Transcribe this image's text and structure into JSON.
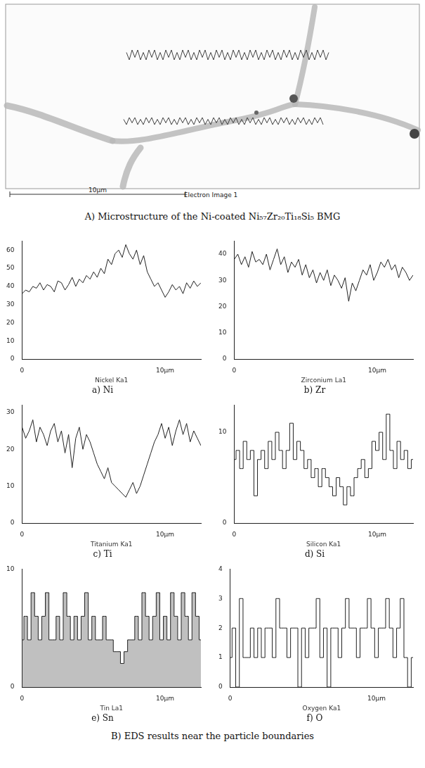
{
  "figure": {
    "panel_a": {
      "scale_bar": "10μm",
      "image_label": "Electron Image 1",
      "caption": "A) Microstructure of the  Ni-coated Ni₅₇Zr₂₀Ti₁₈Si₅ BMG"
    },
    "panel_b_caption": "B) EDS results  near the particle boundaries"
  },
  "chart_data": [
    {
      "type": "line",
      "title": "a) Ni",
      "x_label": "Nickel Ka1",
      "color": "#222222",
      "line_style": "solid",
      "grid": false,
      "x": [
        0,
        0.25,
        0.5,
        0.75,
        1,
        1.25,
        1.5,
        1.75,
        2,
        2.25,
        2.5,
        2.75,
        3,
        3.25,
        3.5,
        3.75,
        4,
        4.25,
        4.5,
        4.75,
        5,
        5.25,
        5.5,
        5.75,
        6,
        6.25,
        6.5,
        6.75,
        7,
        7.25,
        7.5,
        7.75,
        8,
        8.25,
        8.5,
        8.75,
        9,
        9.25,
        9.5,
        9.75,
        10,
        10.25,
        10.5,
        10.75,
        11,
        11.25,
        11.5,
        11.75,
        12,
        12.25,
        12.5
      ],
      "values": [
        36,
        38,
        37,
        40,
        39,
        42,
        38,
        41,
        40,
        37,
        43,
        42,
        38,
        41,
        45,
        40,
        44,
        42,
        46,
        44,
        48,
        45,
        50,
        47,
        55,
        52,
        58,
        60,
        56,
        63,
        58,
        55,
        60,
        52,
        57,
        48,
        44,
        40,
        42,
        38,
        34,
        37,
        41,
        38,
        40,
        36,
        42,
        39,
        43,
        40,
        42
      ],
      "xlim": [
        0,
        12.5
      ],
      "xticks": [
        0,
        {
          "value": 10,
          "label": "10μm"
        }
      ],
      "ylim": [
        0,
        65
      ],
      "yticks": [
        0,
        10,
        20,
        30,
        40,
        50,
        60
      ]
    },
    {
      "type": "line",
      "title": "b) Zr",
      "x_label": "Zirconium La1",
      "color": "#222222",
      "line_style": "solid",
      "grid": false,
      "x": [
        0,
        0.25,
        0.5,
        0.75,
        1,
        1.25,
        1.5,
        1.75,
        2,
        2.25,
        2.5,
        2.75,
        3,
        3.25,
        3.5,
        3.75,
        4,
        4.25,
        4.5,
        4.75,
        5,
        5.25,
        5.5,
        5.75,
        6,
        6.25,
        6.5,
        6.75,
        7,
        7.25,
        7.5,
        7.75,
        8,
        8.25,
        8.5,
        8.75,
        9,
        9.25,
        9.5,
        9.75,
        10,
        10.25,
        10.5,
        10.75,
        11,
        11.25,
        11.5,
        11.75,
        12,
        12.25,
        12.5
      ],
      "values": [
        38,
        40,
        36,
        39,
        35,
        41,
        37,
        38,
        36,
        40,
        34,
        38,
        42,
        36,
        39,
        33,
        37,
        35,
        38,
        32,
        36,
        31,
        34,
        29,
        33,
        30,
        34,
        28,
        32,
        30,
        27,
        31,
        22,
        29,
        26,
        30,
        34,
        32,
        36,
        30,
        33,
        37,
        35,
        38,
        34,
        36,
        31,
        35,
        33,
        30,
        32
      ],
      "xlim": [
        0,
        12.5
      ],
      "xticks": [
        0,
        {
          "value": 10,
          "label": "10μm"
        }
      ],
      "ylim": [
        0,
        45
      ],
      "yticks": [
        0,
        10,
        20,
        30,
        40
      ]
    },
    {
      "type": "line",
      "title": "c) Ti",
      "x_label": "Titanium Ka1",
      "color": "#222222",
      "line_style": "solid",
      "grid": false,
      "x": [
        0,
        0.25,
        0.5,
        0.75,
        1,
        1.25,
        1.5,
        1.75,
        2,
        2.25,
        2.5,
        2.75,
        3,
        3.25,
        3.5,
        3.75,
        4,
        4.25,
        4.5,
        4.75,
        5,
        5.25,
        5.5,
        5.75,
        6,
        6.25,
        6.5,
        6.75,
        7,
        7.25,
        7.5,
        7.75,
        8,
        8.25,
        8.5,
        8.75,
        9,
        9.25,
        9.5,
        9.75,
        10,
        10.25,
        10.5,
        10.75,
        11,
        11.25,
        11.5,
        11.75,
        12,
        12.25,
        12.5
      ],
      "values": [
        26,
        23,
        25,
        28,
        22,
        26,
        24,
        21,
        25,
        27,
        22,
        25,
        19,
        24,
        15,
        23,
        26,
        20,
        24,
        22,
        19,
        16,
        14,
        12,
        15,
        11,
        10,
        9,
        8,
        7,
        9,
        11,
        8,
        10,
        13,
        16,
        19,
        22,
        24,
        27,
        23,
        26,
        21,
        25,
        28,
        24,
        27,
        22,
        25,
        23,
        21
      ],
      "xlim": [
        0,
        12.5
      ],
      "xticks": [
        0,
        {
          "value": 10,
          "label": "10μm"
        }
      ],
      "ylim": [
        0,
        32
      ],
      "yticks": [
        0,
        10,
        20,
        30
      ]
    },
    {
      "type": "line",
      "title": "d) Si",
      "x_label": "Silicon Ka1",
      "color": "#222222",
      "line_style": "step",
      "grid": false,
      "x": [
        0,
        0.25,
        0.5,
        0.75,
        1,
        1.25,
        1.5,
        1.75,
        2,
        2.25,
        2.5,
        2.75,
        3,
        3.25,
        3.5,
        3.75,
        4,
        4.25,
        4.5,
        4.75,
        5,
        5.25,
        5.5,
        5.75,
        6,
        6.25,
        6.5,
        6.75,
        7,
        7.25,
        7.5,
        7.75,
        8,
        8.25,
        8.5,
        8.75,
        9,
        9.25,
        9.5,
        9.75,
        10,
        10.25,
        10.5,
        10.75,
        11,
        11.25,
        11.5,
        11.75,
        12,
        12.25,
        12.5
      ],
      "values": [
        7,
        8,
        6,
        9,
        7,
        8,
        3,
        7,
        8,
        6,
        9,
        7,
        10,
        8,
        6,
        8,
        11,
        7,
        9,
        8,
        6,
        7,
        5,
        6,
        4,
        6,
        5,
        4,
        3,
        5,
        4,
        2,
        4,
        3,
        5,
        6,
        7,
        5,
        6,
        9,
        8,
        10,
        7,
        12,
        8,
        6,
        9,
        7,
        8,
        6,
        7
      ],
      "xlim": [
        0,
        12.5
      ],
      "xticks": [
        0,
        {
          "value": 10,
          "label": "10μm"
        }
      ],
      "ylim": [
        0,
        13
      ],
      "yticks": [
        0,
        10
      ]
    },
    {
      "type": "area",
      "title": "e) Sn",
      "x_label": "Tin La1",
      "color": "#222222",
      "line_style": "step",
      "grid": false,
      "x": [
        0,
        0.25,
        0.5,
        0.75,
        1,
        1.25,
        1.5,
        1.75,
        2,
        2.25,
        2.5,
        2.75,
        3,
        3.25,
        3.5,
        3.75,
        4,
        4.25,
        4.5,
        4.75,
        5,
        5.25,
        5.5,
        5.75,
        6,
        6.25,
        6.5,
        6.75,
        7,
        7.25,
        7.5,
        7.75,
        8,
        8.25,
        8.5,
        8.75,
        9,
        9.25,
        9.5,
        9.75,
        10,
        10.25,
        10.5,
        10.75,
        11,
        11.25,
        11.5,
        11.75,
        12,
        12.25,
        12.5
      ],
      "values": [
        4,
        6,
        4,
        8,
        6,
        4,
        6,
        8,
        4,
        4,
        6,
        4,
        8,
        6,
        4,
        6,
        4,
        6,
        8,
        4,
        6,
        4,
        4,
        6,
        4,
        4,
        3,
        3,
        2,
        3,
        4,
        4,
        6,
        4,
        8,
        6,
        4,
        6,
        8,
        4,
        6,
        4,
        8,
        6,
        4,
        8,
        6,
        4,
        8,
        6,
        4
      ],
      "xlim": [
        0,
        12.5
      ],
      "xticks": [
        0,
        {
          "value": 10,
          "label": "10μm"
        }
      ],
      "ylim": [
        0,
        10
      ],
      "yticks": [
        0,
        10
      ]
    },
    {
      "type": "line",
      "title": "f) O",
      "x_label": "Oxygen Ka1",
      "color": "#222222",
      "line_style": "step",
      "grid": false,
      "x": [
        0,
        0.25,
        0.5,
        0.75,
        1,
        1.25,
        1.5,
        1.75,
        2,
        2.25,
        2.5,
        2.75,
        3,
        3.25,
        3.5,
        3.75,
        4,
        4.25,
        4.5,
        4.75,
        5,
        5.25,
        5.5,
        5.75,
        6,
        6.25,
        6.5,
        6.75,
        7,
        7.25,
        7.5,
        7.75,
        8,
        8.25,
        8.5,
        8.75,
        9,
        9.25,
        9.5,
        9.75,
        10,
        10.25,
        10.5,
        10.75,
        11,
        11.25,
        11.5,
        11.75,
        12,
        12.25,
        12.5
      ],
      "values": [
        1,
        2,
        0,
        3,
        1,
        1,
        2,
        1,
        2,
        1,
        2,
        2,
        1,
        3,
        2,
        2,
        1,
        2,
        2,
        0,
        2,
        1,
        2,
        2,
        3,
        1,
        2,
        0,
        2,
        2,
        1,
        2,
        3,
        2,
        2,
        1,
        2,
        2,
        3,
        2,
        1,
        2,
        2,
        3,
        2,
        1,
        2,
        3,
        1,
        0,
        1
      ],
      "xlim": [
        0,
        12.5
      ],
      "xticks": [
        0,
        {
          "value": 10,
          "label": "10μm"
        }
      ],
      "ylim": [
        0,
        4
      ],
      "yticks": [
        0,
        1,
        2,
        3,
        4
      ]
    }
  ]
}
